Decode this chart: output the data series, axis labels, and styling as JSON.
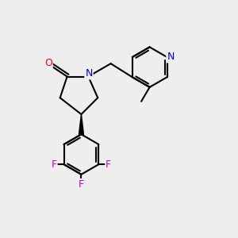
{
  "background_color": "#eeeeee",
  "atom_colors": {
    "O": "#ff0000",
    "N": "#0000cc",
    "F": "#cc00cc",
    "C": "#000000"
  },
  "bond_color": "#000000",
  "lw": 1.5,
  "fontsize": 9
}
